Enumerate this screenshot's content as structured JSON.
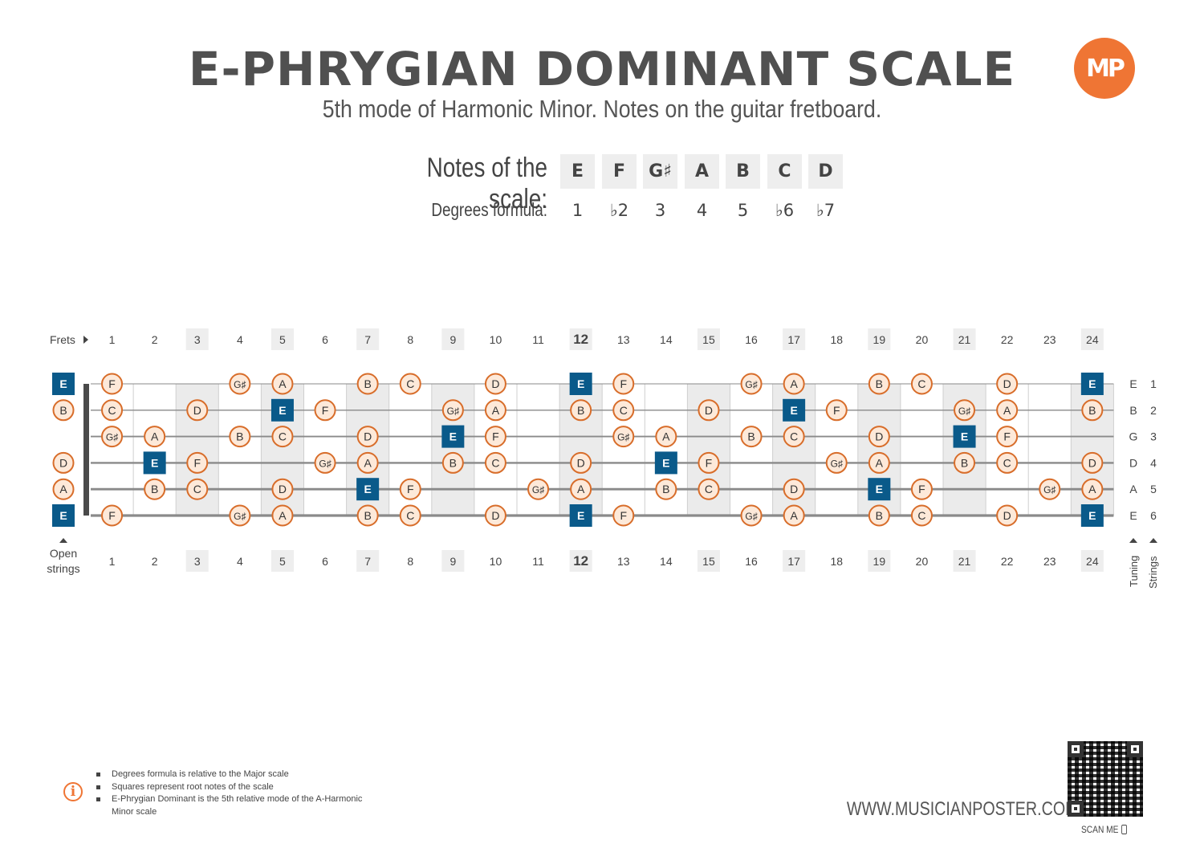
{
  "header": {
    "title": "E-PHRYGIAN DOMINANT SCALE",
    "subtitle": "5th mode of Harmonic Minor. Notes on the guitar fretboard.",
    "logo_text": "MP",
    "logo_color": "#ef7534"
  },
  "scale": {
    "notes_label": "Notes of the scale:",
    "degrees_label": "Degrees formula:",
    "notes": [
      "E",
      "F",
      "G♯",
      "A",
      "B",
      "C",
      "D"
    ],
    "degrees": [
      "1",
      "♭2",
      "3",
      "4",
      "5",
      "♭6",
      "♭7"
    ]
  },
  "fretboard": {
    "frets_label": "Frets",
    "open_label": [
      "Open",
      "strings"
    ],
    "tuning_label": "Tuning",
    "strings_label": "Strings",
    "fret_numbers": [
      "1",
      "2",
      "3",
      "4",
      "5",
      "6",
      "7",
      "8",
      "9",
      "10",
      "11",
      "12",
      "13",
      "14",
      "15",
      "16",
      "17",
      "18",
      "19",
      "20",
      "21",
      "22",
      "23",
      "24"
    ],
    "highlighted_frets": [
      3,
      5,
      7,
      9,
      12,
      15,
      17,
      19,
      21,
      24
    ],
    "bold_fret": 12,
    "strings": [
      {
        "number": "1",
        "tuning": "E"
      },
      {
        "number": "2",
        "tuning": "B"
      },
      {
        "number": "3",
        "tuning": "G"
      },
      {
        "number": "4",
        "tuning": "D"
      },
      {
        "number": "5",
        "tuning": "A"
      },
      {
        "number": "6",
        "tuning": "E"
      }
    ],
    "root_note": "E",
    "root_color": "#0a5a8a",
    "note_color": "#d86d2a",
    "note_fill": "#fde9d9",
    "positions": [
      {
        "string": 1,
        "notes": [
          {
            "fret": 0,
            "note": "E"
          },
          {
            "fret": 1,
            "note": "F"
          },
          {
            "fret": 4,
            "note": "G♯"
          },
          {
            "fret": 5,
            "note": "A"
          },
          {
            "fret": 7,
            "note": "B"
          },
          {
            "fret": 8,
            "note": "C"
          },
          {
            "fret": 10,
            "note": "D"
          },
          {
            "fret": 12,
            "note": "E"
          },
          {
            "fret": 13,
            "note": "F"
          },
          {
            "fret": 16,
            "note": "G♯"
          },
          {
            "fret": 17,
            "note": "A"
          },
          {
            "fret": 19,
            "note": "B"
          },
          {
            "fret": 20,
            "note": "C"
          },
          {
            "fret": 22,
            "note": "D"
          },
          {
            "fret": 24,
            "note": "E"
          }
        ]
      },
      {
        "string": 2,
        "notes": [
          {
            "fret": 0,
            "note": "B"
          },
          {
            "fret": 1,
            "note": "C"
          },
          {
            "fret": 3,
            "note": "D"
          },
          {
            "fret": 5,
            "note": "E"
          },
          {
            "fret": 6,
            "note": "F"
          },
          {
            "fret": 9,
            "note": "G♯"
          },
          {
            "fret": 10,
            "note": "A"
          },
          {
            "fret": 12,
            "note": "B"
          },
          {
            "fret": 13,
            "note": "C"
          },
          {
            "fret": 15,
            "note": "D"
          },
          {
            "fret": 17,
            "note": "E"
          },
          {
            "fret": 18,
            "note": "F"
          },
          {
            "fret": 21,
            "note": "G♯"
          },
          {
            "fret": 22,
            "note": "A"
          },
          {
            "fret": 24,
            "note": "B"
          }
        ]
      },
      {
        "string": 3,
        "notes": [
          {
            "fret": 1,
            "note": "G♯"
          },
          {
            "fret": 2,
            "note": "A"
          },
          {
            "fret": 4,
            "note": "B"
          },
          {
            "fret": 5,
            "note": "C"
          },
          {
            "fret": 7,
            "note": "D"
          },
          {
            "fret": 9,
            "note": "E"
          },
          {
            "fret": 10,
            "note": "F"
          },
          {
            "fret": 13,
            "note": "G♯"
          },
          {
            "fret": 14,
            "note": "A"
          },
          {
            "fret": 16,
            "note": "B"
          },
          {
            "fret": 17,
            "note": "C"
          },
          {
            "fret": 19,
            "note": "D"
          },
          {
            "fret": 21,
            "note": "E"
          },
          {
            "fret": 22,
            "note": "F"
          }
        ]
      },
      {
        "string": 4,
        "notes": [
          {
            "fret": 0,
            "note": "D"
          },
          {
            "fret": 2,
            "note": "E"
          },
          {
            "fret": 3,
            "note": "F"
          },
          {
            "fret": 6,
            "note": "G♯"
          },
          {
            "fret": 7,
            "note": "A"
          },
          {
            "fret": 9,
            "note": "B"
          },
          {
            "fret": 10,
            "note": "C"
          },
          {
            "fret": 12,
            "note": "D"
          },
          {
            "fret": 14,
            "note": "E"
          },
          {
            "fret": 15,
            "note": "F"
          },
          {
            "fret": 18,
            "note": "G♯"
          },
          {
            "fret": 19,
            "note": "A"
          },
          {
            "fret": 21,
            "note": "B"
          },
          {
            "fret": 22,
            "note": "C"
          },
          {
            "fret": 24,
            "note": "D"
          }
        ]
      },
      {
        "string": 5,
        "notes": [
          {
            "fret": 0,
            "note": "A"
          },
          {
            "fret": 2,
            "note": "B"
          },
          {
            "fret": 3,
            "note": "C"
          },
          {
            "fret": 5,
            "note": "D"
          },
          {
            "fret": 7,
            "note": "E"
          },
          {
            "fret": 8,
            "note": "F"
          },
          {
            "fret": 11,
            "note": "G♯"
          },
          {
            "fret": 12,
            "note": "A"
          },
          {
            "fret": 14,
            "note": "B"
          },
          {
            "fret": 15,
            "note": "C"
          },
          {
            "fret": 17,
            "note": "D"
          },
          {
            "fret": 19,
            "note": "E"
          },
          {
            "fret": 20,
            "note": "F"
          },
          {
            "fret": 23,
            "note": "G♯"
          },
          {
            "fret": 24,
            "note": "A"
          }
        ]
      },
      {
        "string": 6,
        "notes": [
          {
            "fret": 0,
            "note": "E"
          },
          {
            "fret": 1,
            "note": "F"
          },
          {
            "fret": 4,
            "note": "G♯"
          },
          {
            "fret": 5,
            "note": "A"
          },
          {
            "fret": 7,
            "note": "B"
          },
          {
            "fret": 8,
            "note": "C"
          },
          {
            "fret": 10,
            "note": "D"
          },
          {
            "fret": 12,
            "note": "E"
          },
          {
            "fret": 13,
            "note": "F"
          },
          {
            "fret": 16,
            "note": "G♯"
          },
          {
            "fret": 17,
            "note": "A"
          },
          {
            "fret": 19,
            "note": "B"
          },
          {
            "fret": 20,
            "note": "C"
          },
          {
            "fret": 22,
            "note": "D"
          },
          {
            "fret": 24,
            "note": "E"
          }
        ]
      }
    ]
  },
  "footer": {
    "info_icon": "info-icon",
    "notes": [
      "Degrees formula is relative to the Major scale",
      "Squares represent root notes of the scale",
      "E-Phrygian Dominant is the 5th relative mode of the A-Harmonic Minor scale"
    ],
    "website": "WWW.MUSICIANPOSTER.COM",
    "scan_me": "SCAN ME"
  }
}
